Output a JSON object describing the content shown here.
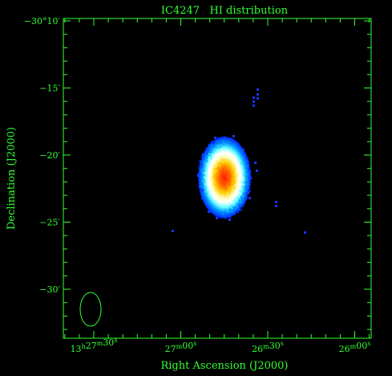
{
  "title": "IC4247   HI distribution",
  "axes": {
    "x_label": "Right Ascension (J2000)",
    "y_label": "Declination (J2000)"
  },
  "y_ticks": [
    {
      "label": "−30°10′",
      "arcmin": 10
    },
    {
      "label": "−15′",
      "arcmin": 15
    },
    {
      "label": "−20′",
      "arcmin": 20
    },
    {
      "label": "−25′",
      "arcmin": 25
    },
    {
      "label": "−30′",
      "arcmin": 30
    }
  ],
  "x_ticks": [
    {
      "h": "13",
      "m": "27",
      "s": "30"
    },
    {
      "h": "",
      "m": "27",
      "s": "00"
    },
    {
      "h": "",
      "m": "26",
      "s": "30"
    },
    {
      "h": "",
      "m": "26",
      "s": "00"
    }
  ],
  "colors": {
    "axes": "#33ff33",
    "background": "#000000",
    "noise": "#1a33ff"
  }
}
